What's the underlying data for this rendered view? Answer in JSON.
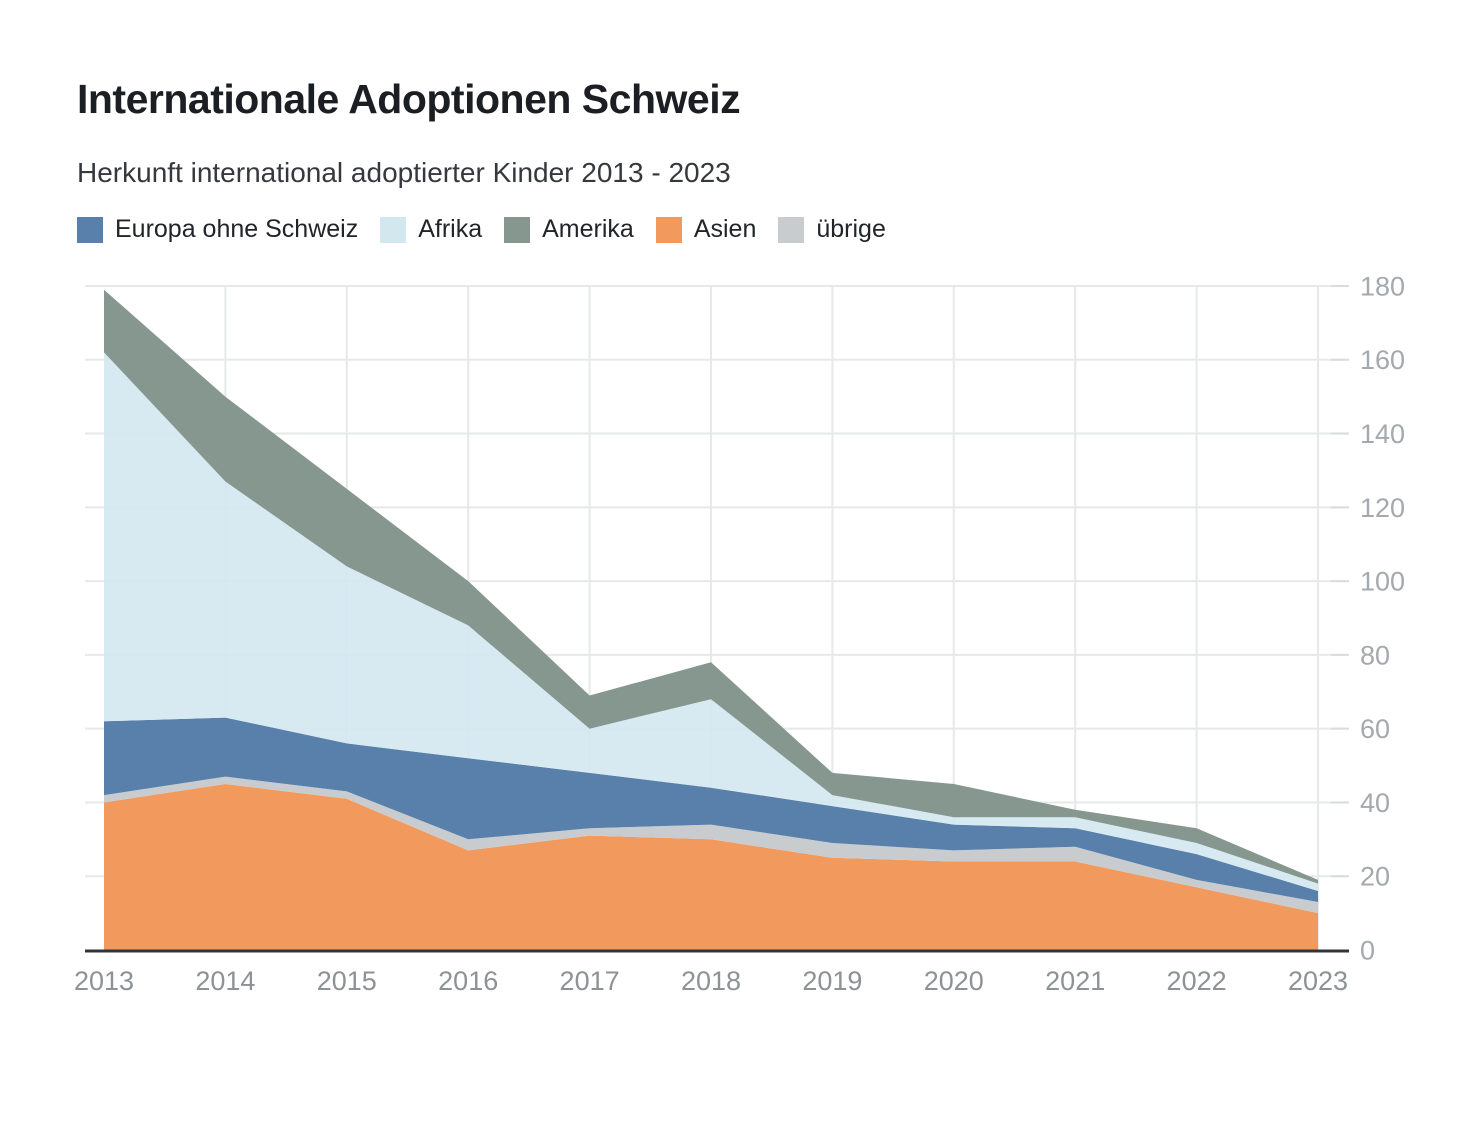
{
  "header": {
    "title": "Internationale Adoptionen Schweiz",
    "subtitle": "Herkunft international adoptierter Kinder 2013 - 2023"
  },
  "chart_data": {
    "type": "area",
    "stacked": true,
    "title": "Internationale Adoptionen Schweiz",
    "subtitle": "Herkunft international adoptierter Kinder 2013 - 2023",
    "x": [
      2013,
      2014,
      2015,
      2016,
      2017,
      2018,
      2019,
      2020,
      2021,
      2022,
      2023
    ],
    "series": [
      {
        "name": "Asien",
        "color": "#f29a5e",
        "values": [
          40,
          45,
          41,
          27,
          31,
          30,
          25,
          24,
          24,
          17,
          10
        ]
      },
      {
        "name": "übrige",
        "color": "#c9cccf",
        "values": [
          2,
          2,
          2,
          3,
          2,
          4,
          4,
          3,
          4,
          2,
          3
        ]
      },
      {
        "name": "Europa ohne Schweiz",
        "color": "#5880aa",
        "values": [
          20,
          16,
          13,
          22,
          15,
          10,
          10,
          7,
          5,
          7,
          3
        ]
      },
      {
        "name": "Afrika",
        "color": "#d3e7ef",
        "values": [
          100,
          64,
          48,
          36,
          12,
          24,
          3,
          2,
          3,
          3,
          2
        ]
      },
      {
        "name": "Amerika",
        "color": "#85978f",
        "values": [
          17,
          23,
          21,
          12,
          9,
          10,
          6,
          9,
          2,
          4,
          1
        ]
      }
    ],
    "totals": [
      179,
      150,
      125,
      100,
      69,
      78,
      48,
      45,
      38,
      33,
      19
    ],
    "legend_order": [
      "Europa ohne Schweiz",
      "Afrika",
      "Amerika",
      "Asien",
      "übrige"
    ],
    "legend_position": "top",
    "ylim": [
      0,
      180
    ],
    "ytick_step": 20,
    "yticks": [
      0,
      20,
      40,
      60,
      80,
      100,
      120,
      140,
      160,
      180
    ],
    "grid": true,
    "colors": {
      "background": "#ffffff",
      "gridline": "#e6e8ea",
      "axis_line": "#303438",
      "y_tick": "#d9dbdd",
      "y_label": "#a4a9ad",
      "x_label": "#8d9297"
    }
  }
}
